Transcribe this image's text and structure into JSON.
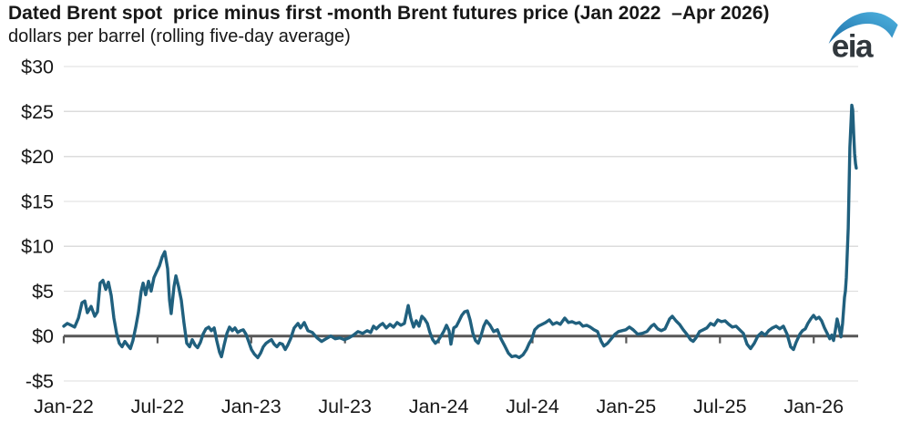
{
  "header": {
    "title": "Dated Brent spot  price minus first -month Brent futures price (Jan 2022  –Apr 2026)",
    "subtitle": "dollars per barrel (rolling five-day average)",
    "logo_text": "eia"
  },
  "chart_data": {
    "type": "line",
    "title": "Dated Brent spot price minus first-month Brent futures price (Jan 2022 – Apr 2026)",
    "subtitle": "dollars per barrel (rolling five-day average)",
    "xlabel": "",
    "ylabel": "dollars per barrel",
    "grid": "horizontal",
    "legend_position": "none",
    "xlim": [
      2022.0,
      2026.237
    ],
    "ylim": [
      -5,
      30
    ],
    "colors": {
      "line": "#20607e",
      "zero_axis": "#575757",
      "grid": "#dcdcdc",
      "text": "#171717",
      "logo_text": "#31383d",
      "logo_swoosh_start": "#1c6fa8",
      "logo_swoosh_end": "#4fb3e0"
    },
    "yticks": [
      {
        "label": "$30",
        "value": 30
      },
      {
        "label": "$25",
        "value": 25
      },
      {
        "label": "$20",
        "value": 20
      },
      {
        "label": "$15",
        "value": 15
      },
      {
        "label": "$10",
        "value": 10
      },
      {
        "label": "$5",
        "value": 5
      },
      {
        "label": "$0",
        "value": 0
      },
      {
        "label": "-$5",
        "value": -5
      }
    ],
    "xticks": [
      {
        "label": "Jan-22",
        "t": 2022.0
      },
      {
        "label": "Jul-22",
        "t": 2022.5
      },
      {
        "label": "Jan-23",
        "t": 2023.0
      },
      {
        "label": "Jul-23",
        "t": 2023.5
      },
      {
        "label": "Jan-24",
        "t": 2024.0
      },
      {
        "label": "Jul-24",
        "t": 2024.5
      },
      {
        "label": "Jan-25",
        "t": 2025.0
      },
      {
        "label": "Jul-25",
        "t": 2025.5
      },
      {
        "label": "Jan-26",
        "t": 2026.0
      }
    ],
    "series": [
      {
        "name": "Dated Brent spot price minus first-month Brent futures price",
        "points": [
          [
            2022.0,
            1.1
          ],
          [
            2022.019,
            1.4
          ],
          [
            2022.039,
            1.2
          ],
          [
            2022.058,
            1.0
          ],
          [
            2022.078,
            2.0
          ],
          [
            2022.097,
            3.7
          ],
          [
            2022.112,
            3.9
          ],
          [
            2022.126,
            2.6
          ],
          [
            2022.146,
            3.3
          ],
          [
            2022.165,
            2.2
          ],
          [
            2022.18,
            2.7
          ],
          [
            2022.194,
            5.9
          ],
          [
            2022.209,
            6.2
          ],
          [
            2022.224,
            5.2
          ],
          [
            2022.238,
            6.0
          ],
          [
            2022.253,
            4.5
          ],
          [
            2022.267,
            2.0
          ],
          [
            2022.282,
            0.3
          ],
          [
            2022.296,
            -0.8
          ],
          [
            2022.311,
            -1.2
          ],
          [
            2022.326,
            -0.6
          ],
          [
            2022.34,
            -1.0
          ],
          [
            2022.355,
            -1.4
          ],
          [
            2022.369,
            -0.5
          ],
          [
            2022.384,
            1.0
          ],
          [
            2022.398,
            2.6
          ],
          [
            2022.413,
            5.0
          ],
          [
            2022.423,
            5.9
          ],
          [
            2022.437,
            4.6
          ],
          [
            2022.452,
            6.1
          ],
          [
            2022.466,
            5.0
          ],
          [
            2022.481,
            6.5
          ],
          [
            2022.496,
            7.2
          ],
          [
            2022.51,
            7.8
          ],
          [
            2022.525,
            8.8
          ],
          [
            2022.539,
            9.4
          ],
          [
            2022.554,
            7.5
          ],
          [
            2022.564,
            4.0
          ],
          [
            2022.573,
            2.5
          ],
          [
            2022.588,
            5.5
          ],
          [
            2022.598,
            6.7
          ],
          [
            2022.612,
            5.5
          ],
          [
            2022.627,
            4.0
          ],
          [
            2022.641,
            1.5
          ],
          [
            2022.656,
            -0.8
          ],
          [
            2022.671,
            -1.2
          ],
          [
            2022.685,
            -0.4
          ],
          [
            2022.7,
            -1.0
          ],
          [
            2022.714,
            -1.3
          ],
          [
            2022.729,
            -0.7
          ],
          [
            2022.743,
            0.2
          ],
          [
            2022.758,
            0.8
          ],
          [
            2022.773,
            1.0
          ],
          [
            2022.787,
            0.6
          ],
          [
            2022.802,
            0.9
          ],
          [
            2022.816,
            -0.5
          ],
          [
            2022.831,
            -1.8
          ],
          [
            2022.841,
            -2.3
          ],
          [
            2022.855,
            -1.0
          ],
          [
            2022.87,
            0.3
          ],
          [
            2022.884,
            1.0
          ],
          [
            2022.899,
            0.6
          ],
          [
            2022.913,
            0.9
          ],
          [
            2022.928,
            0.4
          ],
          [
            2022.943,
            0.6
          ],
          [
            2022.957,
            0.7
          ],
          [
            2022.972,
            0.2
          ],
          [
            2022.986,
            -0.6
          ],
          [
            2023.001,
            -1.5
          ],
          [
            2023.016,
            -2.0
          ],
          [
            2023.035,
            -2.4
          ],
          [
            2023.05,
            -1.9
          ],
          [
            2023.064,
            -1.2
          ],
          [
            2023.079,
            -0.8
          ],
          [
            2023.093,
            -0.6
          ],
          [
            2023.108,
            -0.4
          ],
          [
            2023.122,
            -0.9
          ],
          [
            2023.137,
            -1.2
          ],
          [
            2023.152,
            -0.8
          ],
          [
            2023.166,
            -0.9
          ],
          [
            2023.181,
            -1.5
          ],
          [
            2023.195,
            -1.0
          ],
          [
            2023.21,
            -0.3
          ],
          [
            2023.229,
            0.9
          ],
          [
            2023.249,
            1.4
          ],
          [
            2023.263,
            0.9
          ],
          [
            2023.283,
            1.5
          ],
          [
            2023.302,
            0.6
          ],
          [
            2023.326,
            0.4
          ],
          [
            2023.351,
            -0.2
          ],
          [
            2023.375,
            -0.6
          ],
          [
            2023.399,
            -0.3
          ],
          [
            2023.424,
            0.0
          ],
          [
            2023.448,
            -0.3
          ],
          [
            2023.472,
            -0.2
          ],
          [
            2023.497,
            -0.4
          ],
          [
            2023.521,
            -0.2
          ],
          [
            2023.545,
            0.1
          ],
          [
            2023.569,
            0.5
          ],
          [
            2023.594,
            0.3
          ],
          [
            2023.618,
            0.6
          ],
          [
            2023.637,
            0.4
          ],
          [
            2023.652,
            1.1
          ],
          [
            2023.667,
            0.8
          ],
          [
            2023.686,
            1.2
          ],
          [
            2023.701,
            1.4
          ],
          [
            2023.72,
            0.9
          ],
          [
            2023.74,
            1.3
          ],
          [
            2023.759,
            1.0
          ],
          [
            2023.778,
            1.5
          ],
          [
            2023.798,
            1.2
          ],
          [
            2023.817,
            1.4
          ],
          [
            2023.837,
            3.4
          ],
          [
            2023.851,
            2.0
          ],
          [
            2023.866,
            1.0
          ],
          [
            2023.88,
            1.7
          ],
          [
            2023.895,
            1.1
          ],
          [
            2023.91,
            2.2
          ],
          [
            2023.924,
            1.9
          ],
          [
            2023.939,
            1.4
          ],
          [
            2023.953,
            0.4
          ],
          [
            2023.968,
            -0.4
          ],
          [
            2023.982,
            -0.8
          ],
          [
            2023.997,
            -0.5
          ],
          [
            2024.012,
            0.0
          ],
          [
            2024.026,
            0.5
          ],
          [
            2024.041,
            1.2
          ],
          [
            2024.055,
            0.6
          ],
          [
            2024.065,
            -0.9
          ],
          [
            2024.08,
            0.9
          ],
          [
            2024.094,
            1.1
          ],
          [
            2024.109,
            1.7
          ],
          [
            2024.123,
            2.3
          ],
          [
            2024.138,
            2.7
          ],
          [
            2024.153,
            2.8
          ],
          [
            2024.167,
            1.8
          ],
          [
            2024.182,
            0.3
          ],
          [
            2024.196,
            -0.5
          ],
          [
            2024.211,
            -0.8
          ],
          [
            2024.225,
            0.0
          ],
          [
            2024.24,
            1.1
          ],
          [
            2024.254,
            1.7
          ],
          [
            2024.274,
            1.2
          ],
          [
            2024.293,
            0.5
          ],
          [
            2024.313,
            0.7
          ],
          [
            2024.332,
            -0.3
          ],
          [
            2024.352,
            -1.1
          ],
          [
            2024.371,
            -1.9
          ],
          [
            2024.39,
            -2.3
          ],
          [
            2024.41,
            -2.2
          ],
          [
            2024.429,
            -2.4
          ],
          [
            2024.449,
            -2.1
          ],
          [
            2024.468,
            -1.5
          ],
          [
            2024.483,
            -0.8
          ],
          [
            2024.497,
            -0.3
          ],
          [
            2024.512,
            0.7
          ],
          [
            2024.531,
            1.1
          ],
          [
            2024.551,
            1.3
          ],
          [
            2024.57,
            1.5
          ],
          [
            2024.59,
            1.8
          ],
          [
            2024.609,
            1.3
          ],
          [
            2024.629,
            1.5
          ],
          [
            2024.648,
            1.3
          ],
          [
            2024.672,
            2.0
          ],
          [
            2024.692,
            1.5
          ],
          [
            2024.711,
            1.6
          ],
          [
            2024.731,
            1.4
          ],
          [
            2024.75,
            1.5
          ],
          [
            2024.769,
            1.1
          ],
          [
            2024.789,
            1.2
          ],
          [
            2024.808,
            1.0
          ],
          [
            2024.828,
            0.7
          ],
          [
            2024.847,
            0.5
          ],
          [
            2024.867,
            -0.6
          ],
          [
            2024.881,
            -1.1
          ],
          [
            2024.901,
            -0.8
          ],
          [
            2024.92,
            -0.3
          ],
          [
            2024.94,
            0.2
          ],
          [
            2024.959,
            0.5
          ],
          [
            2024.978,
            0.6
          ],
          [
            2024.998,
            0.7
          ],
          [
            2025.017,
            1.0
          ],
          [
            2025.037,
            0.7
          ],
          [
            2025.061,
            0.2
          ],
          [
            2025.085,
            0.3
          ],
          [
            2025.11,
            0.5
          ],
          [
            2025.134,
            1.1
          ],
          [
            2025.148,
            1.3
          ],
          [
            2025.168,
            0.8
          ],
          [
            2025.187,
            0.6
          ],
          [
            2025.207,
            0.8
          ],
          [
            2025.231,
            1.9
          ],
          [
            2025.246,
            2.2
          ],
          [
            2025.265,
            1.7
          ],
          [
            2025.284,
            1.3
          ],
          [
            2025.304,
            0.7
          ],
          [
            2025.323,
            0.2
          ],
          [
            2025.343,
            -0.4
          ],
          [
            2025.357,
            -0.6
          ],
          [
            2025.372,
            -0.2
          ],
          [
            2025.391,
            0.5
          ],
          [
            2025.411,
            0.7
          ],
          [
            2025.43,
            0.9
          ],
          [
            2025.45,
            1.4
          ],
          [
            2025.469,
            1.2
          ],
          [
            2025.488,
            1.8
          ],
          [
            2025.508,
            1.6
          ],
          [
            2025.527,
            1.7
          ],
          [
            2025.547,
            1.3
          ],
          [
            2025.566,
            1.0
          ],
          [
            2025.586,
            1.1
          ],
          [
            2025.605,
            0.7
          ],
          [
            2025.625,
            0.3
          ],
          [
            2025.644,
            -0.9
          ],
          [
            2025.663,
            -1.4
          ],
          [
            2025.683,
            -0.8
          ],
          [
            2025.702,
            0.0
          ],
          [
            2025.722,
            0.4
          ],
          [
            2025.741,
            0.1
          ],
          [
            2025.76,
            0.6
          ],
          [
            2025.78,
            0.9
          ],
          [
            2025.799,
            1.1
          ],
          [
            2025.819,
            0.8
          ],
          [
            2025.838,
            1.1
          ],
          [
            2025.858,
            0.2
          ],
          [
            2025.877,
            -1.2
          ],
          [
            2025.892,
            -1.5
          ],
          [
            2025.906,
            -0.7
          ],
          [
            2025.926,
            0.2
          ],
          [
            2025.94,
            0.6
          ],
          [
            2025.955,
            0.8
          ],
          [
            2025.969,
            1.4
          ],
          [
            2025.984,
            1.9
          ],
          [
            2025.999,
            2.3
          ],
          [
            2026.013,
            1.9
          ],
          [
            2026.028,
            2.1
          ],
          [
            2026.042,
            1.7
          ],
          [
            2026.057,
            0.9
          ],
          [
            2026.072,
            0.3
          ],
          [
            2026.086,
            -0.3
          ],
          [
            2026.096,
            0.1
          ],
          [
            2026.106,
            -0.5
          ],
          [
            2026.115,
            0.6
          ],
          [
            2026.125,
            1.9
          ],
          [
            2026.135,
            1.0
          ],
          [
            2026.145,
            -0.1
          ],
          [
            2026.154,
            1.4
          ],
          [
            2026.164,
            4.3
          ],
          [
            2026.169,
            5.0
          ],
          [
            2026.174,
            6.5
          ],
          [
            2026.184,
            12.0
          ],
          [
            2026.193,
            21.0
          ],
          [
            2026.203,
            25.7
          ],
          [
            2026.208,
            25.2
          ],
          [
            2026.213,
            22.5
          ],
          [
            2026.218,
            20.3
          ],
          [
            2026.223,
            19.2
          ],
          [
            2026.227,
            18.7
          ]
        ]
      }
    ]
  }
}
